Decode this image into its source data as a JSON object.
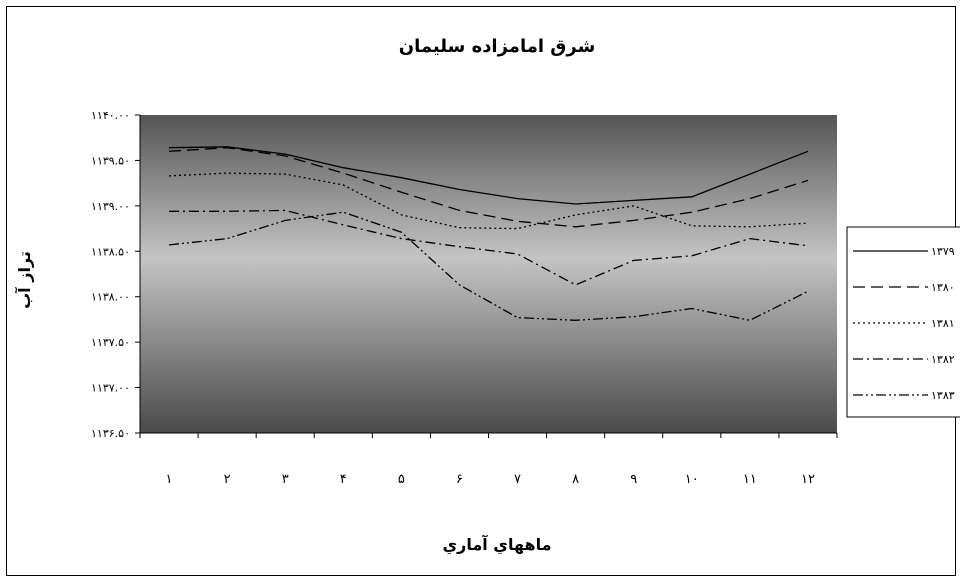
{
  "chart_data": {
    "type": "line",
    "title": "شرق امامزاده سليمان",
    "xlabel": "ماههاي آماري",
    "ylabel": "تراز آب",
    "categories": [
      "١",
      "٢",
      "٣",
      "۴",
      "۵",
      "۶",
      "٧",
      "٨",
      "٩",
      "١٠",
      "١١",
      "١٢"
    ],
    "y_tick_labels": [
      "١١۴٠.٠٠",
      "١١٣٩.۵٠",
      "١١٣٩.٠٠",
      "١١٣٨.۵٠",
      "١١٣٨.٠٠",
      "١١٣٧.۵٠",
      "١١٣٧.٠٠",
      "١١٣۶.۵٠"
    ],
    "ylim": [
      1136.5,
      1140
    ],
    "legend_position": "right",
    "series": [
      {
        "name": "١٣٧٩",
        "dash": "solid",
        "values": [
          1139.64,
          1139.65,
          1139.57,
          1139.42,
          1139.31,
          1139.18,
          1139.08,
          1139.02,
          1139.06,
          1139.1,
          1139.35,
          1139.6
        ]
      },
      {
        "name": "١٣٨٠",
        "dash": "long",
        "values": [
          1139.6,
          1139.64,
          1139.55,
          1139.36,
          1139.15,
          1138.95,
          1138.83,
          1138.77,
          1138.84,
          1138.93,
          1139.08,
          1139.28
        ]
      },
      {
        "name": "١٣٨١",
        "dash": "dot",
        "values": [
          1139.33,
          1139.36,
          1139.35,
          1139.23,
          1138.9,
          1138.76,
          1138.75,
          1138.9,
          1139.0,
          1138.78,
          1138.77,
          1138.81
        ]
      },
      {
        "name": "١٣٨٢",
        "dash": "dashdot",
        "values": [
          1138.94,
          1138.94,
          1138.95,
          1138.79,
          1138.64,
          1138.55,
          1138.47,
          1138.13,
          1138.4,
          1138.45,
          1138.64,
          1138.56
        ]
      },
      {
        "name": "١٣٨٣",
        "dash": "dashdotdot",
        "values": [
          1138.57,
          1138.64,
          1138.84,
          1138.93,
          1138.71,
          1138.13,
          1137.77,
          1137.74,
          1137.78,
          1137.87,
          1137.74,
          1138.06
        ]
      }
    ]
  }
}
